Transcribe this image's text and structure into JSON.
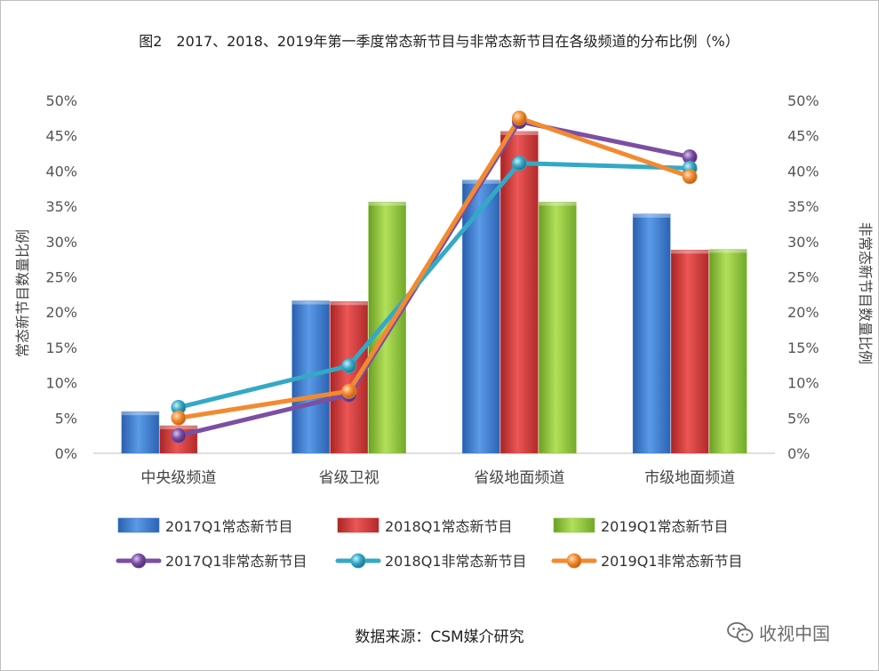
{
  "chart_data": {
    "type": "bar",
    "title": "图2　2017、2018、2019年第一季度常态新节目与非常态新节目在各级频道的分布比例（%）",
    "ylabel": "常态新节目数量比例",
    "y2label": "非常态新节目数量比例",
    "ylim": [
      0,
      50
    ],
    "yticks": [
      "0%",
      "5%",
      "10%",
      "15%",
      "20%",
      "25%",
      "30%",
      "35%",
      "40%",
      "45%",
      "50%"
    ],
    "y2ticks": [
      "0%",
      "5%",
      "10%",
      "15%",
      "20%",
      "25%",
      "30%",
      "35%",
      "40%",
      "45%",
      "50%"
    ],
    "categories": [
      "中央级频道",
      "省级卫视",
      "省级地面频道",
      "市级地面频道"
    ],
    "bar_series": [
      {
        "name": "2017Q1常态新节目",
        "color": "#3f7fd0",
        "values": [
          5.9,
          21.6,
          38.7,
          33.9
        ]
      },
      {
        "name": "2018Q1常态新节目",
        "color": "#d63a3a",
        "values": [
          3.9,
          21.5,
          45.6,
          28.8
        ]
      },
      {
        "name": "2019Q1常态新节目",
        "color": "#8cc63f",
        "values": [
          0,
          35.6,
          35.6,
          28.9
        ]
      }
    ],
    "line_series": [
      {
        "name": "2017Q1非常态新节目",
        "color": "#7b4fa3",
        "values": [
          2.5,
          8.3,
          47.0,
          42.0
        ]
      },
      {
        "name": "2018Q1非常态新节目",
        "color": "#34a9c6",
        "values": [
          6.5,
          12.4,
          41.1,
          40.4
        ]
      },
      {
        "name": "2019Q1非常态新节目",
        "color": "#f28a30",
        "values": [
          5.0,
          8.8,
          47.5,
          39.2
        ]
      }
    ],
    "legend_position": "bottom",
    "grid": false
  },
  "footer": {
    "source": "数据来源：CSM媒介研究",
    "watermark": "收视中国"
  }
}
